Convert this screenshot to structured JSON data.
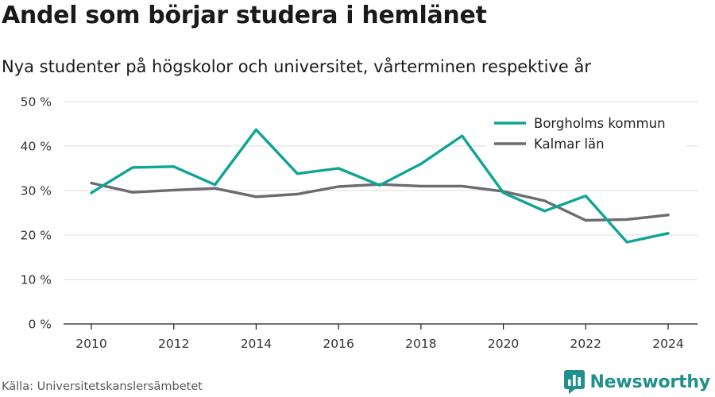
{
  "title": "Andel som börjar studera i hemlänet",
  "subtitle": "Nya studenter på högskolor och universitet, vårterminen respektive år",
  "source": "Källa: Universitetskanslersämbetet",
  "brand": {
    "name": "Newsworthy",
    "icon": "bar-chart-icon",
    "color": "#21908c"
  },
  "chart_data": {
    "type": "line",
    "x": [
      2010,
      2011,
      2012,
      2013,
      2014,
      2015,
      2016,
      2017,
      2018,
      2019,
      2020,
      2021,
      2022,
      2023,
      2024
    ],
    "series": [
      {
        "name": "Borgholms kommun",
        "color": "#0ea497",
        "values": [
          29.5,
          35.2,
          35.4,
          31.3,
          43.7,
          33.8,
          35.0,
          31.2,
          36.0,
          42.3,
          29.5,
          25.4,
          28.8,
          18.4,
          20.4
        ]
      },
      {
        "name": "Kalmar län",
        "color": "#6b6b70",
        "values": [
          31.7,
          29.6,
          30.1,
          30.5,
          28.6,
          29.2,
          30.9,
          31.4,
          31.0,
          31.0,
          29.8,
          27.7,
          23.3,
          23.5,
          24.5
        ]
      }
    ],
    "ylim": [
      0,
      50
    ],
    "yticks": [
      0,
      10,
      20,
      30,
      40,
      50
    ],
    "ytick_labels": [
      "0 %",
      "10 %",
      "20 %",
      "30 %",
      "40 %",
      "50 %"
    ],
    "xticks": [
      2010,
      2012,
      2014,
      2016,
      2018,
      2020,
      2022,
      2024
    ],
    "xtick_labels": [
      "2010",
      "2012",
      "2014",
      "2016",
      "2018",
      "2020",
      "2022",
      "2024"
    ],
    "grid": true,
    "legend": "top-right"
  }
}
